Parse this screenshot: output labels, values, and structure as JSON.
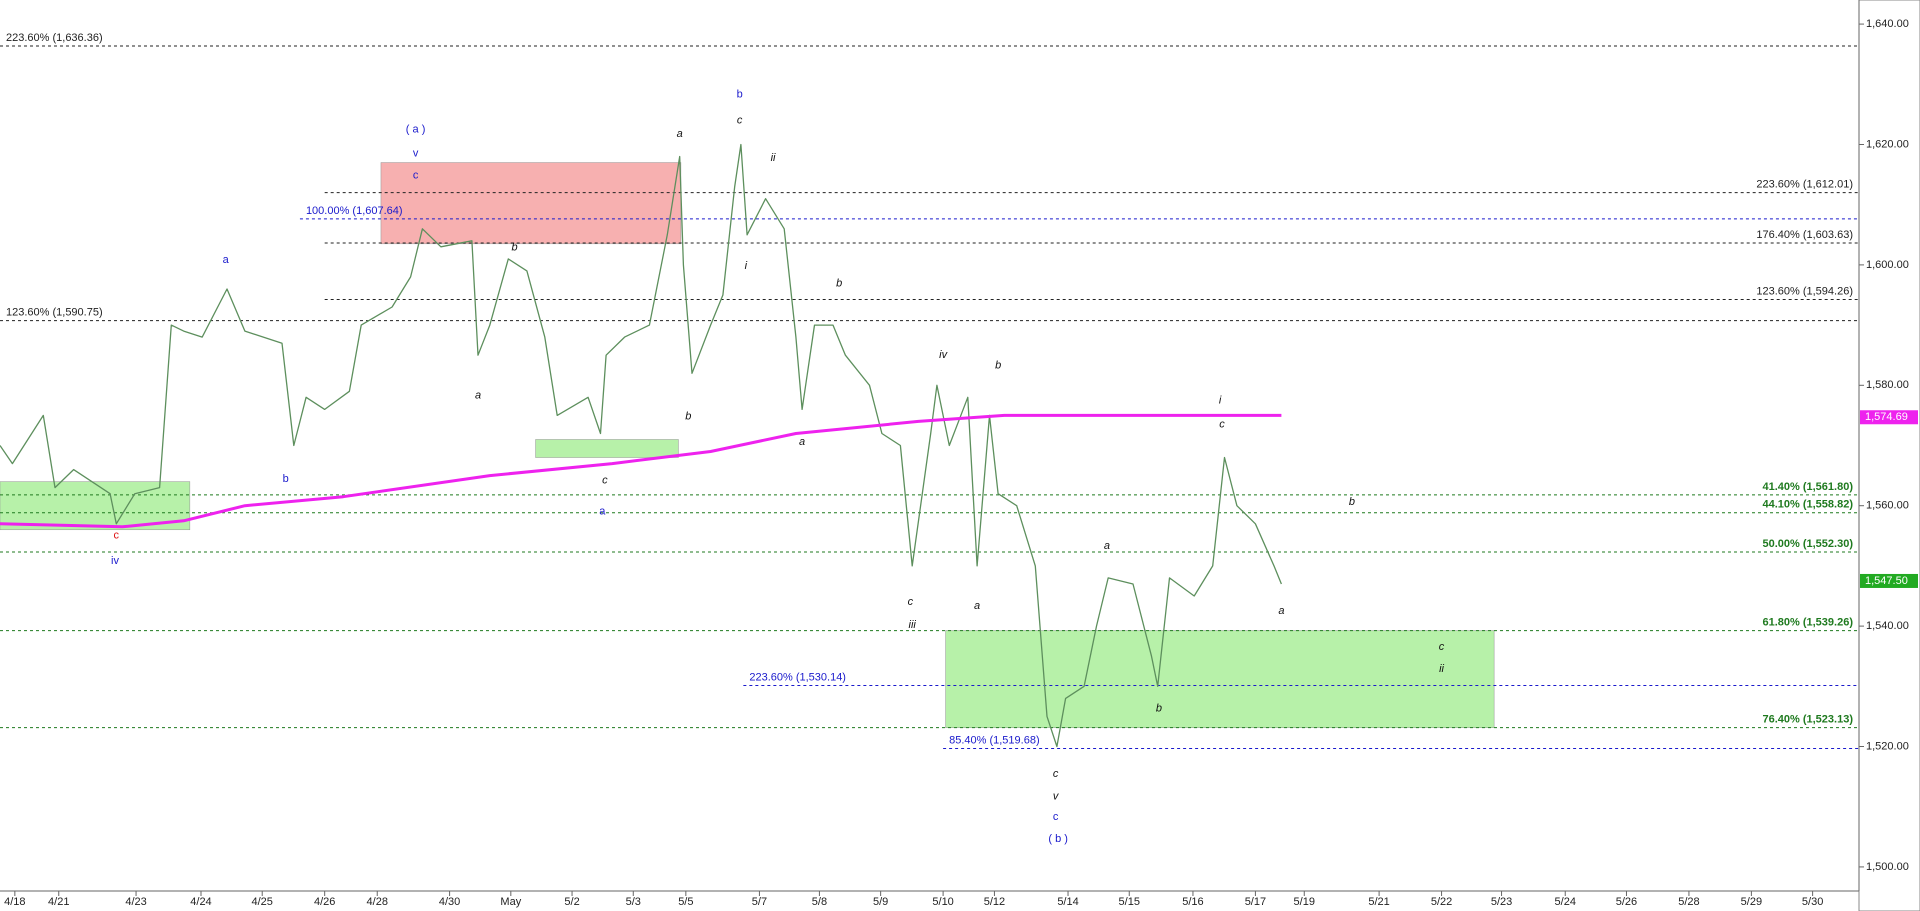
{
  "chart_data": {
    "type": "line",
    "xlim": [
      -0.24,
      29.82
    ],
    "ylim": [
      1496,
      1644
    ],
    "xticks": [
      {
        "value": 0,
        "label": "4/18"
      },
      {
        "value": 0.71,
        "label": "4/21"
      },
      {
        "value": 1.96,
        "label": "4/23"
      },
      {
        "value": 3.01,
        "label": "4/24"
      },
      {
        "value": 4.0,
        "label": "4/25"
      },
      {
        "value": 5.01,
        "label": "4/26"
      },
      {
        "value": 5.86,
        "label": "4/28"
      },
      {
        "value": 7.03,
        "label": "4/30"
      },
      {
        "value": 8.02,
        "label": "May"
      },
      {
        "value": 9.01,
        "label": "5/2"
      },
      {
        "value": 10.0,
        "label": "5/3"
      },
      {
        "value": 10.85,
        "label": "5/5"
      },
      {
        "value": 12.04,
        "label": "5/7"
      },
      {
        "value": 13.01,
        "label": "5/8"
      },
      {
        "value": 14.0,
        "label": "5/9"
      },
      {
        "value": 15.01,
        "label": "5/10"
      },
      {
        "value": 15.84,
        "label": "5/12"
      },
      {
        "value": 17.03,
        "label": "5/14"
      },
      {
        "value": 18.02,
        "label": "5/15"
      },
      {
        "value": 19.05,
        "label": "5/16"
      },
      {
        "value": 20.06,
        "label": "5/17"
      },
      {
        "value": 20.85,
        "label": "5/19"
      },
      {
        "value": 22.06,
        "label": "5/21"
      },
      {
        "value": 23.07,
        "label": "5/22"
      },
      {
        "value": 24.04,
        "label": "5/23"
      },
      {
        "value": 25.07,
        "label": "5/24"
      },
      {
        "value": 26.06,
        "label": "5/26"
      },
      {
        "value": 27.07,
        "label": "5/28"
      },
      {
        "value": 28.08,
        "label": "5/29"
      },
      {
        "value": 29.07,
        "label": "5/30"
      }
    ],
    "yticks": [
      {
        "value": 1500,
        "label": "1,500.00"
      },
      {
        "value": 1520,
        "label": "1,520.00"
      },
      {
        "value": 1540,
        "label": "1,540.00"
      },
      {
        "value": 1560,
        "label": "1,560.00"
      },
      {
        "value": 1580,
        "label": "1,580.00"
      },
      {
        "value": 1600,
        "label": "1,600.00"
      },
      {
        "value": 1620,
        "label": "1,620.00"
      },
      {
        "value": 1640,
        "label": "1,640.00"
      }
    ],
    "series": [
      {
        "color": "#5d8f5d",
        "x": [
          -0.24,
          -0.04,
          0.46,
          0.65,
          0.95,
          1.54,
          1.64,
          1.94,
          2.34,
          2.53,
          2.73,
          3.03,
          3.43,
          3.72,
          4.32,
          4.51,
          4.71,
          5.01,
          5.41,
          5.6,
          6.1,
          6.4,
          6.59,
          6.89,
          7.39,
          7.49,
          7.68,
          7.98,
          8.28,
          8.57,
          8.77,
          9.27,
          9.47,
          9.56,
          9.86,
          10.26,
          10.55,
          10.75,
          10.81,
          10.95,
          11.25,
          11.45,
          11.64,
          11.74,
          11.84,
          12.14,
          12.44,
          12.63,
          12.73,
          12.93,
          13.23,
          13.43,
          13.82,
          14.02,
          14.32,
          14.51,
          14.81,
          14.91,
          15.11,
          15.41,
          15.56,
          15.76,
          15.9,
          16.2,
          16.5,
          16.69,
          16.85,
          16.99,
          17.29,
          17.49,
          17.68,
          18.08,
          18.38,
          18.48,
          18.67,
          19.07,
          19.37,
          19.56,
          19.76,
          20.06,
          20.36,
          20.48
        ],
        "values": [
          1570,
          1567,
          1575,
          1563,
          1566,
          1562,
          1557,
          1562,
          1563,
          1590,
          1589,
          1588,
          1596,
          1589,
          1587,
          1570,
          1578,
          1576,
          1579,
          1590,
          1593,
          1598,
          1606,
          1603,
          1604,
          1585,
          1590,
          1601,
          1599,
          1588,
          1575,
          1578,
          1572,
          1585,
          1588,
          1590,
          1605,
          1618,
          1600,
          1582,
          1590,
          1595,
          1613,
          1620,
          1605,
          1611,
          1606,
          1588,
          1576,
          1590,
          1590,
          1585,
          1580,
          1572,
          1570,
          1550,
          1572,
          1580,
          1570,
          1578,
          1550,
          1575,
          1562,
          1560,
          1550,
          1525,
          1520,
          1528,
          1530,
          1540,
          1548,
          1547,
          1535,
          1530,
          1548,
          1545,
          1550,
          1568,
          1560,
          1557,
          1550,
          1547
        ]
      },
      {
        "color": "#ee22ee",
        "x": [
          -0.24,
          1.74,
          2.73,
          3.72,
          5.31,
          7.68,
          9.66,
          11.25,
          12.63,
          14.61,
          16.0,
          20.48
        ],
        "values": [
          1557,
          1556.5,
          1557.5,
          1560,
          1561.5,
          1565,
          1567,
          1569,
          1572,
          1574,
          1575,
          1575
        ]
      }
    ],
    "price_tags": [
      {
        "value": 1574.69,
        "label": "1,574.69",
        "color": "#ee22ee"
      },
      {
        "value": 1547.5,
        "label": "1,547.50",
        "color": "#22aa22"
      }
    ],
    "levels": [
      {
        "label": "223.60% (1,636.36)",
        "value": 1636.36,
        "color": "#222222",
        "x_start": -0.24,
        "label_side": "left"
      },
      {
        "label": "123.60% (1,590.75)",
        "value": 1590.75,
        "color": "#222222",
        "x_start": -0.24,
        "label_side": "left"
      },
      {
        "label": "100.00% (1,607.64)",
        "value": 1607.64,
        "color": "#1a1acc",
        "x_start": 4.61,
        "label_side": "left"
      },
      {
        "label": "223.60% (1,612.01)",
        "value": 1612.01,
        "color": "#222222",
        "x_start": 5.01,
        "label_side": "right"
      },
      {
        "label": "176.40% (1,603.63)",
        "value": 1603.63,
        "color": "#222222",
        "x_start": 5.01,
        "label_side": "right"
      },
      {
        "label": "123.60% (1,594.26)",
        "value": 1594.26,
        "color": "#222222",
        "x_start": 5.01,
        "label_side": "right"
      },
      {
        "label": "41.40% (1,561.80)",
        "value": 1561.8,
        "color": "#1f7a1f",
        "x_start": -0.24,
        "label_side": "right"
      },
      {
        "label": "44.10% (1,558.82)",
        "value": 1558.82,
        "color": "#1f7a1f",
        "x_start": -0.24,
        "label_side": "right"
      },
      {
        "label": "50.00% (1,552.30)",
        "value": 1552.3,
        "color": "#1f7a1f",
        "x_start": -0.24,
        "label_side": "right"
      },
      {
        "label": "61.80% (1,539.26)",
        "value": 1539.26,
        "color": "#1f7a1f",
        "x_start": -0.24,
        "label_side": "right"
      },
      {
        "label": "76.40% (1,523.13)",
        "value": 1523.13,
        "color": "#1f7a1f",
        "x_start": -0.24,
        "label_side": "right"
      },
      {
        "label": "223.60% (1,530.14)",
        "value": 1530.14,
        "color": "#1a1acc",
        "x_start": 11.78,
        "label_side": "left"
      },
      {
        "label": "85.40% (1,519.68)",
        "value": 1519.68,
        "color": "#1a1acc",
        "x_start": 15.01,
        "label_side": "left"
      }
    ],
    "boxes": [
      {
        "x": [
          5.92,
          10.77
        ],
        "y": [
          1603.5,
          1617
        ],
        "color": "#f7a8a8"
      },
      {
        "x": [
          8.42,
          10.73
        ],
        "y": [
          1568,
          1571
        ],
        "color": "#b0f0a0"
      },
      {
        "x": [
          -0.24,
          2.83
        ],
        "y": [
          1556,
          1564
        ],
        "color": "#b0f0a0"
      },
      {
        "x": [
          15.05,
          23.92
        ],
        "y": [
          1523.13,
          1539.26
        ],
        "color": "#b0f0a0"
      }
    ],
    "wave_labels": [
      {
        "text": "( a )",
        "x": 6.48,
        "y": 1622.5,
        "color": "#1a1acc"
      },
      {
        "text": "v",
        "x": 6.48,
        "y": 1618.5,
        "color": "#1a1acc"
      },
      {
        "text": "c",
        "x": 6.48,
        "y": 1614.8,
        "color": "#1a1acc"
      },
      {
        "text": "a",
        "x": 3.41,
        "y": 1600.8,
        "color": "#1a1acc"
      },
      {
        "text": "b",
        "x": 4.38,
        "y": 1564.4,
        "color": "#1a1acc"
      },
      {
        "text": "c",
        "x": 1.64,
        "y": 1555,
        "color": "#dd1111"
      },
      {
        "text": "iv",
        "x": 1.62,
        "y": 1550.8,
        "color": "#1a1acc"
      },
      {
        "text": "a",
        "x": 7.49,
        "y": 1578.3,
        "color": "#111111"
      },
      {
        "text": "b",
        "x": 8.08,
        "y": 1602.9,
        "color": "#111111"
      },
      {
        "text": "c",
        "x": 9.54,
        "y": 1564.2,
        "color": "#111111"
      },
      {
        "text": "a",
        "x": 9.5,
        "y": 1559,
        "color": "#1a1acc"
      },
      {
        "text": "a",
        "x": 10.75,
        "y": 1621.7,
        "color": "#111111"
      },
      {
        "text": "b",
        "x": 10.89,
        "y": 1574.8,
        "color": "#111111"
      },
      {
        "text": "b",
        "x": 11.72,
        "y": 1628.3,
        "color": "#1a1acc"
      },
      {
        "text": "c",
        "x": 11.72,
        "y": 1624,
        "color": "#111111"
      },
      {
        "text": "i",
        "x": 11.82,
        "y": 1599.8,
        "color": "#111111"
      },
      {
        "text": "ii",
        "x": 12.26,
        "y": 1617.7,
        "color": "#111111"
      },
      {
        "text": "a",
        "x": 12.73,
        "y": 1570.6,
        "color": "#111111"
      },
      {
        "text": "b",
        "x": 13.33,
        "y": 1596.9,
        "color": "#111111"
      },
      {
        "text": "iv",
        "x": 15.01,
        "y": 1585,
        "color": "#111111"
      },
      {
        "text": "b",
        "x": 15.9,
        "y": 1583.3,
        "color": "#111111"
      },
      {
        "text": "c",
        "x": 14.48,
        "y": 1544,
        "color": "#111111"
      },
      {
        "text": "iii",
        "x": 14.51,
        "y": 1540.2,
        "color": "#111111"
      },
      {
        "text": "a",
        "x": 15.56,
        "y": 1543.3,
        "color": "#111111"
      },
      {
        "text": "c",
        "x": 16.83,
        "y": 1515.4,
        "color": "#111111"
      },
      {
        "text": "v",
        "x": 16.83,
        "y": 1511.7,
        "color": "#111111"
      },
      {
        "text": "c",
        "x": 16.83,
        "y": 1508.3,
        "color": "#1a1acc"
      },
      {
        "text": "( b )",
        "x": 16.87,
        "y": 1504.6,
        "color": "#1a1acc"
      },
      {
        "text": "a",
        "x": 17.66,
        "y": 1553.3,
        "color": "#111111"
      },
      {
        "text": "b",
        "x": 18.5,
        "y": 1526.3,
        "color": "#111111"
      },
      {
        "text": "i",
        "x": 19.49,
        "y": 1577.5,
        "color": "#111111"
      },
      {
        "text": "c",
        "x": 19.52,
        "y": 1573.5,
        "color": "#111111"
      },
      {
        "text": "a",
        "x": 20.48,
        "y": 1542.5,
        "color": "#111111"
      },
      {
        "text": "b",
        "x": 21.62,
        "y": 1560.6,
        "color": "#111111"
      },
      {
        "text": "c",
        "x": 23.07,
        "y": 1536.5,
        "color": "#111111"
      },
      {
        "text": "ii",
        "x": 23.07,
        "y": 1532.9,
        "color": "#111111"
      }
    ]
  }
}
